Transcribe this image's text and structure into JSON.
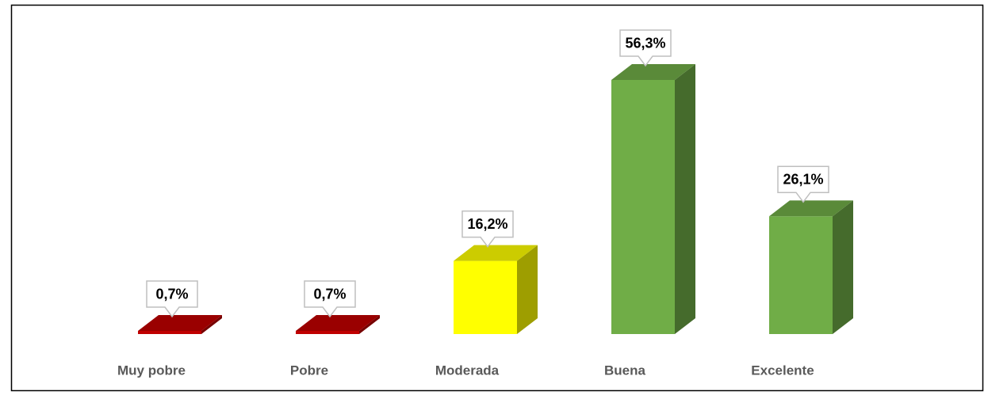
{
  "chart_data": {
    "type": "bar3d",
    "categories": [
      "Muy pobre",
      "Pobre",
      "Moderada",
      "Buena",
      "Excelente"
    ],
    "values": [
      0.7,
      0.7,
      16.2,
      56.3,
      26.1
    ],
    "value_labels": [
      "0,7%",
      "0,7%",
      "16,2%",
      "56,3%",
      "26,1%"
    ],
    "colors": [
      "#c00000",
      "#c00000",
      "#ffff00",
      "#70ad47",
      "#70ad47"
    ]
  }
}
